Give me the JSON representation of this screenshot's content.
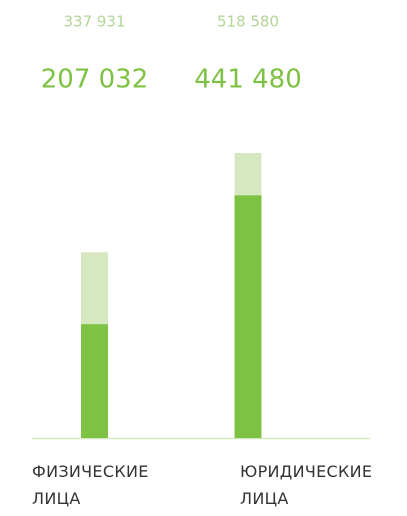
{
  "chart_data": {
    "type": "bar",
    "categories": [
      "ФИЗИЧЕСКИЕ ЛИЦА",
      "ЮРИДИЧЕСКИЕ ЛИЦА"
    ],
    "series": [
      {
        "color": "#d5e8c0",
        "label_color": "#b3d596",
        "values": [
          337931,
          518580
        ],
        "value_labels": [
          "337 931",
          "518 580"
        ]
      },
      {
        "color": "#7dc242",
        "label_color": "#7dc242",
        "values": [
          207032,
          441480
        ],
        "value_labels": [
          "207 032",
          "441 480"
        ]
      }
    ]
  }
}
